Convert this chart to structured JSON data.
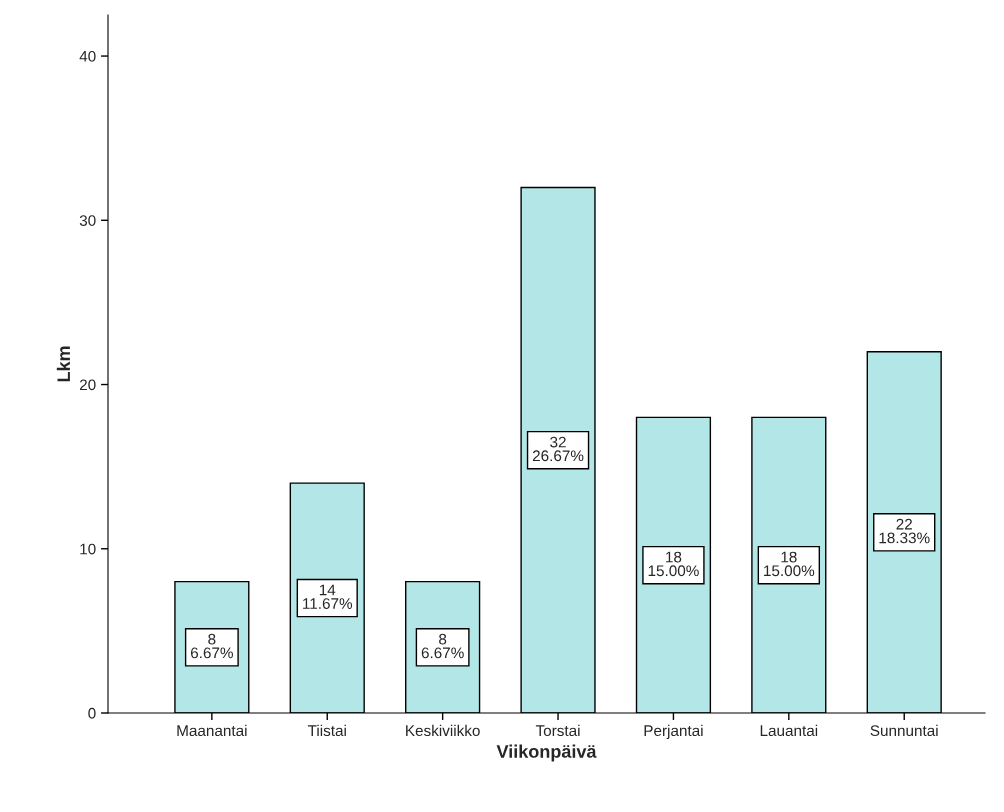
{
  "chart_data": {
    "type": "bar",
    "xlabel": "Viikonpäivä",
    "ylabel": "Lkm",
    "categories": [
      "Maanantai",
      "Tiistai",
      "Keskiviikko",
      "Torstai",
      "Perjantai",
      "Lauantai",
      "Sunnuntai"
    ],
    "values": [
      8,
      14,
      8,
      32,
      18,
      18,
      22
    ],
    "value_labels": [
      "8\n6.67%",
      "14\n11.67%",
      "8\n6.67%",
      "32\n26.67%",
      "18\n15.00%",
      "18\n15.00%",
      "22\n18.33%"
    ],
    "color": "#b3e6e6",
    "ylim": [
      0,
      42.5
    ],
    "yticks": [
      0,
      10,
      20,
      30,
      40
    ],
    "grid": false
  }
}
